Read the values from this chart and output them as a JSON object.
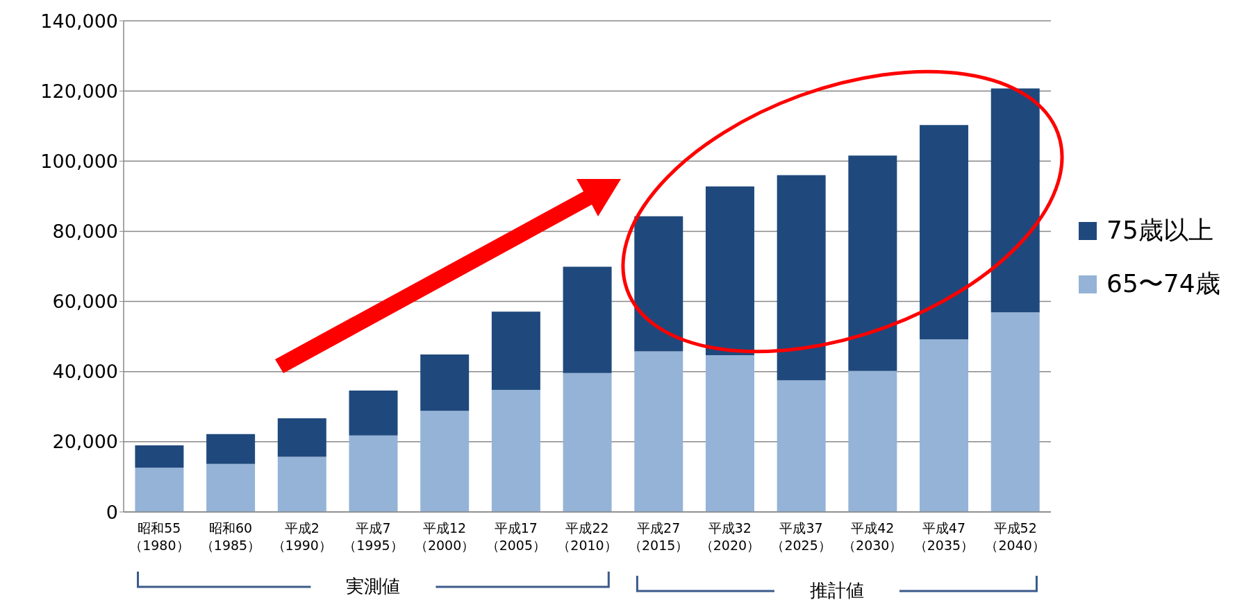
{
  "chart_data": {
    "type": "bar",
    "stacked": true,
    "categories": [
      "昭和55\n（1980）",
      "昭和60\n（1985）",
      "平成2\n（1990）",
      "平成7\n（1995）",
      "平成12\n（2000）",
      "平成17\n（2005）",
      "平成22\n（2010）",
      "平成27\n（2015）",
      "平成32\n（2020）",
      "平成37\n（2025）",
      "平成42\n（2030）",
      "平成47\n（2035）",
      "平成52\n（2040）"
    ],
    "series": [
      {
        "name": "65〜74歳",
        "color": "#95b3d7",
        "values": [
          12600,
          13700,
          15700,
          21800,
          28800,
          34800,
          39600,
          45800,
          44700,
          37500,
          40200,
          49200,
          56900
        ]
      },
      {
        "name": "75歳以上",
        "color": "#1f497d",
        "values": [
          6400,
          8500,
          11000,
          12800,
          16100,
          22300,
          30300,
          38500,
          48100,
          58500,
          61400,
          61100,
          63800
        ]
      }
    ],
    "ylim": [
      0,
      140000
    ],
    "yticks": [
      {
        "value": 0,
        "label": "0"
      },
      {
        "value": 20000,
        "label": "20,000"
      },
      {
        "value": 40000,
        "label": "40,000"
      },
      {
        "value": 60000,
        "label": "60,000"
      },
      {
        "value": 80000,
        "label": "80,000"
      },
      {
        "value": 100000,
        "label": "100,000"
      },
      {
        "value": 120000,
        "label": "120,000"
      },
      {
        "value": 140000,
        "label": "140,000"
      }
    ],
    "grid": "y",
    "legend": "right",
    "annotations": [
      "実測値",
      "推計値"
    ]
  }
}
